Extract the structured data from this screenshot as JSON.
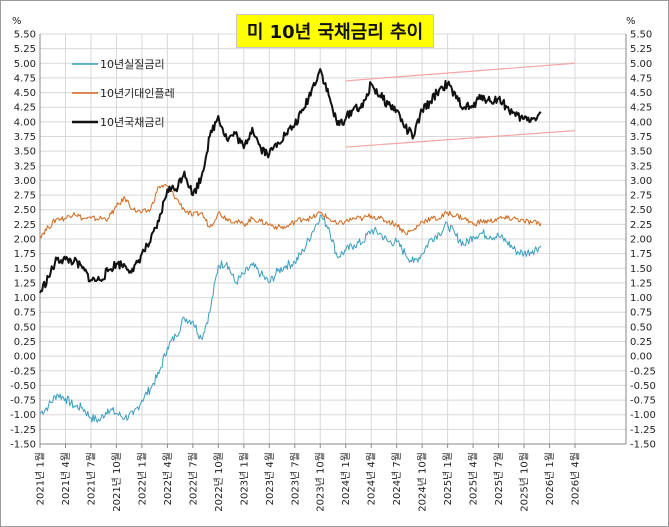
{
  "title": "미 10년 국채금리 추이",
  "unit_left": "%",
  "unit_right": "%",
  "colors": {
    "real_rate": "#3a9fbf",
    "breakeven": "#d2691e",
    "nominal": "#111111",
    "channel": "#f4a6a6",
    "title_bg": "#ffff00",
    "grid": "#d8d8d8"
  },
  "chart_data": {
    "type": "line",
    "title": "미 10년 국채금리 추이",
    "xlabel": "",
    "ylabel": "%",
    "ylim": [
      -1.5,
      5.5
    ],
    "ytick_step": 0.25,
    "y_ticks": [
      "5.50",
      "5.25",
      "5.00",
      "4.75",
      "4.50",
      "4.25",
      "4.00",
      "3.75",
      "3.50",
      "3.25",
      "3.00",
      "2.75",
      "2.50",
      "2.25",
      "2.00",
      "1.75",
      "1.50",
      "1.25",
      "1.00",
      "0.75",
      "0.50",
      "0.25",
      "0.00",
      "-0.25",
      "-0.50",
      "-0.75",
      "-1.00",
      "-1.25",
      "-1.50"
    ],
    "x_tick_labels": [
      "2021년 1월",
      "2021년 4월",
      "2021년 7월",
      "2021년 10월",
      "2022년 1월",
      "2022년 4월",
      "2022년 7월",
      "2022년 10월",
      "2023년 1월",
      "2023년 4월",
      "2023년 7월",
      "2023년 10월",
      "2024년 1월",
      "2024년 4월",
      "2024년 7월",
      "2024년 10월",
      "2025년 1월",
      "2025년 4월",
      "2025년 7월",
      "2025년 10월",
      "2026년 1월",
      "2026년 4월"
    ],
    "x_months": [
      "2021-01",
      "2021-04",
      "2021-07",
      "2021-10",
      "2022-01",
      "2022-04",
      "2022-07",
      "2022-10",
      "2023-01",
      "2023-04",
      "2023-07",
      "2023-10",
      "2024-01",
      "2024-04",
      "2024-07",
      "2024-10",
      "2025-01",
      "2025-04",
      "2025-07",
      "2025-10",
      "2026-01",
      "2026-04"
    ],
    "series": [
      {
        "name": "10년실질금리",
        "points": [
          [
            "2021-01",
            -0.98
          ],
          [
            "2021-02",
            -0.85
          ],
          [
            "2021-03",
            -0.65
          ],
          [
            "2021-04",
            -0.72
          ],
          [
            "2021-05",
            -0.85
          ],
          [
            "2021-06",
            -0.88
          ],
          [
            "2021-07",
            -1.05
          ],
          [
            "2021-08",
            -1.1
          ],
          [
            "2021-09",
            -0.9
          ],
          [
            "2021-10",
            -0.98
          ],
          [
            "2021-11",
            -1.05
          ],
          [
            "2021-12",
            -1.0
          ],
          [
            "2022-01",
            -0.75
          ],
          [
            "2022-02",
            -0.55
          ],
          [
            "2022-03",
            -0.3
          ],
          [
            "2022-04",
            0.15
          ],
          [
            "2022-05",
            0.35
          ],
          [
            "2022-06",
            0.65
          ],
          [
            "2022-07",
            0.6
          ],
          [
            "2022-08",
            0.3
          ],
          [
            "2022-09",
            0.75
          ],
          [
            "2022-10",
            1.55
          ],
          [
            "2022-11",
            1.6
          ],
          [
            "2022-12",
            1.25
          ],
          [
            "2023-01",
            1.4
          ],
          [
            "2023-02",
            1.55
          ],
          [
            "2023-03",
            1.4
          ],
          [
            "2023-04",
            1.25
          ],
          [
            "2023-05",
            1.45
          ],
          [
            "2023-06",
            1.55
          ],
          [
            "2023-07",
            1.6
          ],
          [
            "2023-08",
            1.8
          ],
          [
            "2023-09",
            2.1
          ],
          [
            "2023-10",
            2.4
          ],
          [
            "2023-11",
            2.2
          ],
          [
            "2023-12",
            1.7
          ],
          [
            "2024-01",
            1.8
          ],
          [
            "2024-02",
            1.9
          ],
          [
            "2024-03",
            1.95
          ],
          [
            "2024-04",
            2.15
          ],
          [
            "2024-05",
            2.1
          ],
          [
            "2024-06",
            1.95
          ],
          [
            "2024-07",
            1.95
          ],
          [
            "2024-08",
            1.75
          ],
          [
            "2024-09",
            1.6
          ],
          [
            "2024-10",
            1.75
          ],
          [
            "2024-11",
            2.0
          ],
          [
            "2024-12",
            2.1
          ],
          [
            "2025-01",
            2.25
          ],
          [
            "2025-02",
            2.05
          ],
          [
            "2025-03",
            1.9
          ],
          [
            "2025-04",
            2.05
          ],
          [
            "2025-05",
            2.1
          ],
          [
            "2025-06",
            2.05
          ],
          [
            "2025-07",
            2.05
          ],
          [
            "2025-08",
            1.95
          ],
          [
            "2025-09",
            1.8
          ],
          [
            "2025-10",
            1.75
          ],
          [
            "2025-11",
            1.8
          ],
          [
            "2025-12",
            1.88
          ]
        ]
      },
      {
        "name": "10년기대인플레",
        "points": [
          [
            "2021-01",
            2.05
          ],
          [
            "2021-02",
            2.2
          ],
          [
            "2021-03",
            2.35
          ],
          [
            "2021-04",
            2.35
          ],
          [
            "2021-05",
            2.45
          ],
          [
            "2021-06",
            2.35
          ],
          [
            "2021-07",
            2.35
          ],
          [
            "2021-08",
            2.35
          ],
          [
            "2021-09",
            2.35
          ],
          [
            "2021-10",
            2.55
          ],
          [
            "2021-11",
            2.7
          ],
          [
            "2021-12",
            2.5
          ],
          [
            "2022-01",
            2.45
          ],
          [
            "2022-02",
            2.5
          ],
          [
            "2022-03",
            2.9
          ],
          [
            "2022-04",
            2.9
          ],
          [
            "2022-05",
            2.7
          ],
          [
            "2022-06",
            2.5
          ],
          [
            "2022-07",
            2.4
          ],
          [
            "2022-08",
            2.45
          ],
          [
            "2022-09",
            2.2
          ],
          [
            "2022-10",
            2.45
          ],
          [
            "2022-11",
            2.35
          ],
          [
            "2022-12",
            2.3
          ],
          [
            "2023-01",
            2.25
          ],
          [
            "2023-02",
            2.35
          ],
          [
            "2023-03",
            2.3
          ],
          [
            "2023-04",
            2.25
          ],
          [
            "2023-05",
            2.2
          ],
          [
            "2023-06",
            2.2
          ],
          [
            "2023-07",
            2.3
          ],
          [
            "2023-08",
            2.35
          ],
          [
            "2023-09",
            2.35
          ],
          [
            "2023-10",
            2.45
          ],
          [
            "2023-11",
            2.35
          ],
          [
            "2023-12",
            2.25
          ],
          [
            "2024-01",
            2.3
          ],
          [
            "2024-02",
            2.35
          ],
          [
            "2024-03",
            2.35
          ],
          [
            "2024-04",
            2.4
          ],
          [
            "2024-05",
            2.35
          ],
          [
            "2024-06",
            2.3
          ],
          [
            "2024-07",
            2.25
          ],
          [
            "2024-08",
            2.1
          ],
          [
            "2024-09",
            2.15
          ],
          [
            "2024-10",
            2.3
          ],
          [
            "2024-11",
            2.35
          ],
          [
            "2024-12",
            2.35
          ],
          [
            "2025-01",
            2.45
          ],
          [
            "2025-02",
            2.4
          ],
          [
            "2025-03",
            2.35
          ],
          [
            "2025-04",
            2.25
          ],
          [
            "2025-05",
            2.3
          ],
          [
            "2025-06",
            2.3
          ],
          [
            "2025-07",
            2.35
          ],
          [
            "2025-08",
            2.35
          ],
          [
            "2025-09",
            2.35
          ],
          [
            "2025-10",
            2.3
          ],
          [
            "2025-11",
            2.28
          ],
          [
            "2025-12",
            2.27
          ]
        ]
      },
      {
        "name": "10년국채금리",
        "points": [
          [
            "2021-01",
            1.08
          ],
          [
            "2021-02",
            1.35
          ],
          [
            "2021-03",
            1.65
          ],
          [
            "2021-04",
            1.65
          ],
          [
            "2021-05",
            1.62
          ],
          [
            "2021-06",
            1.5
          ],
          [
            "2021-07",
            1.3
          ],
          [
            "2021-08",
            1.3
          ],
          [
            "2021-09",
            1.45
          ],
          [
            "2021-10",
            1.58
          ],
          [
            "2021-11",
            1.55
          ],
          [
            "2021-12",
            1.45
          ],
          [
            "2022-01",
            1.75
          ],
          [
            "2022-02",
            1.95
          ],
          [
            "2022-03",
            2.3
          ],
          [
            "2022-04",
            2.85
          ],
          [
            "2022-05",
            2.85
          ],
          [
            "2022-06",
            3.15
          ],
          [
            "2022-07",
            2.75
          ],
          [
            "2022-08",
            3.05
          ],
          [
            "2022-09",
            3.75
          ],
          [
            "2022-10",
            4.1
          ],
          [
            "2022-11",
            3.7
          ],
          [
            "2022-12",
            3.8
          ],
          [
            "2023-01",
            3.55
          ],
          [
            "2023-02",
            3.9
          ],
          [
            "2023-03",
            3.55
          ],
          [
            "2023-04",
            3.45
          ],
          [
            "2023-05",
            3.65
          ],
          [
            "2023-06",
            3.8
          ],
          [
            "2023-07",
            3.95
          ],
          [
            "2023-08",
            4.2
          ],
          [
            "2023-09",
            4.55
          ],
          [
            "2023-10",
            4.9
          ],
          [
            "2023-11",
            4.45
          ],
          [
            "2023-12",
            3.95
          ],
          [
            "2024-01",
            4.05
          ],
          [
            "2024-02",
            4.25
          ],
          [
            "2024-03",
            4.25
          ],
          [
            "2024-04",
            4.65
          ],
          [
            "2024-05",
            4.45
          ],
          [
            "2024-06",
            4.3
          ],
          [
            "2024-07",
            4.2
          ],
          [
            "2024-08",
            3.9
          ],
          [
            "2024-09",
            3.75
          ],
          [
            "2024-10",
            4.2
          ],
          [
            "2024-11",
            4.35
          ],
          [
            "2024-12",
            4.55
          ],
          [
            "2025-01",
            4.65
          ],
          [
            "2025-02",
            4.4
          ],
          [
            "2025-03",
            4.25
          ],
          [
            "2025-04",
            4.25
          ],
          [
            "2025-05",
            4.45
          ],
          [
            "2025-06",
            4.35
          ],
          [
            "2025-07",
            4.4
          ],
          [
            "2025-08",
            4.25
          ],
          [
            "2025-09",
            4.1
          ],
          [
            "2025-10",
            4.05
          ],
          [
            "2025-11",
            4.05
          ],
          [
            "2025-12",
            4.15
          ]
        ]
      }
    ],
    "channel_lines": [
      {
        "points": [
          [
            "2024-01",
            4.7
          ],
          [
            "2026-04",
            5.0
          ]
        ]
      },
      {
        "points": [
          [
            "2024-01",
            3.57
          ],
          [
            "2026-04",
            3.85
          ]
        ]
      }
    ]
  }
}
